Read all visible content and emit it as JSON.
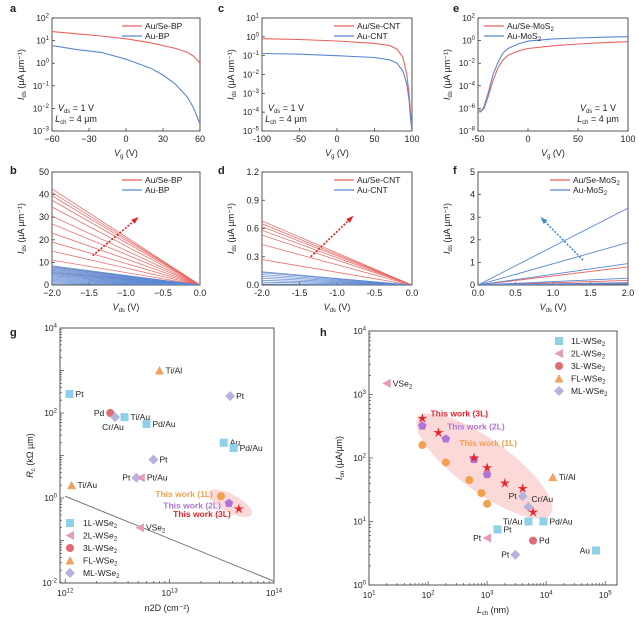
{
  "colors": {
    "red": "#e8625f",
    "blue": "#5b87d1",
    "arrow_red": "#e0201c",
    "arrow_blue": "#3d8ed6",
    "sq": "#8dd0e8",
    "tri2L": "#e69bbd",
    "circ3L": "#e06b72",
    "triFL": "#f0a261",
    "diamML": "#b3b3dc",
    "tw1": "#f2a04e",
    "tw2": "#b173d8",
    "tw3": "#e8232a",
    "ellipse": "#fbd9d9",
    "axis": "#555555"
  },
  "chart_data": [
    {
      "id": "a",
      "panel_label": "a",
      "type": "line",
      "yscale": "log",
      "xlabel": "Vg (V)",
      "ylabel": "Ids (µA µm⁻¹)",
      "xlim": [
        -60,
        60
      ],
      "ylim_exp": [
        -3,
        2
      ],
      "xticks": [
        -60,
        -30,
        0,
        30,
        60
      ],
      "xtick_labels": [
        "−60",
        "−30",
        "0",
        "30",
        "60"
      ],
      "ytick_exps": [
        -3,
        -2,
        -1,
        0,
        1,
        2
      ],
      "legend": [
        "Au/Se-BP",
        "Au-BP"
      ],
      "legend_pos": "top-right",
      "annotation": [
        "Vds = 1 V",
        "Lch = 4 µm"
      ],
      "series": [
        {
          "name": "Au/Se-BP",
          "color": "red",
          "x": [
            -60,
            -40,
            -20,
            0,
            20,
            40,
            50,
            55,
            60
          ],
          "y": [
            25,
            20,
            16,
            12,
            8,
            4.5,
            3,
            2,
            1
          ]
        },
        {
          "name": "Au-BP",
          "color": "blue",
          "x": [
            -60,
            -40,
            -20,
            0,
            20,
            30,
            40,
            50,
            55,
            60
          ],
          "y": [
            6,
            4,
            3,
            1.5,
            0.6,
            0.3,
            0.12,
            0.03,
            0.01,
            0.002
          ]
        }
      ]
    },
    {
      "id": "c",
      "panel_label": "c",
      "type": "line",
      "yscale": "log",
      "xlabel": "Vg (V)",
      "ylabel": "Ids (µA um⁻¹)",
      "xlim": [
        -100,
        100
      ],
      "ylim_exp": [
        -5,
        1
      ],
      "xticks": [
        -100,
        -50,
        0,
        50,
        100
      ],
      "xtick_labels": [
        "-100",
        "-50",
        "0",
        "50",
        "100"
      ],
      "ytick_exps": [
        -5,
        -4,
        -3,
        -2,
        -1,
        0,
        1
      ],
      "legend": [
        "Au/Se-CNT",
        "Au-CNT"
      ],
      "legend_pos": "top-right",
      "annotation": [
        "Vds = 1 V",
        "Lch = 4 µm"
      ],
      "series": [
        {
          "name": "Au/Se-CNT",
          "color": "red",
          "x": [
            -100,
            -50,
            0,
            50,
            70,
            80,
            88,
            93,
            96,
            98,
            100
          ],
          "y": [
            0.8,
            0.72,
            0.6,
            0.45,
            0.35,
            0.22,
            0.08,
            0.01,
            0.001,
            0.0001,
            1e-05
          ]
        },
        {
          "name": "Au-CNT",
          "color": "blue",
          "x": [
            -100,
            -50,
            0,
            50,
            70,
            80,
            88,
            93,
            96,
            98,
            100
          ],
          "y": [
            0.13,
            0.12,
            0.1,
            0.08,
            0.06,
            0.04,
            0.015,
            0.003,
            0.0005,
            5e-05,
            1e-05
          ]
        }
      ]
    },
    {
      "id": "e",
      "panel_label": "e",
      "type": "line",
      "yscale": "log",
      "xlabel": "Vg (V)",
      "ylabel": "Ids (µA µm⁻¹)",
      "xlim": [
        -50,
        100
      ],
      "ylim_exp": [
        -8,
        2
      ],
      "xticks": [
        -50,
        0,
        50,
        100
      ],
      "xtick_labels": [
        "-50",
        "0",
        "50",
        "100"
      ],
      "ytick_exps": [
        -8,
        -6,
        -4,
        -2,
        0,
        2
      ],
      "legend": [
        "Au/Se-MoS₂",
        "Au-MoS₂"
      ],
      "legend_pos": "top-left",
      "annotation": [
        "Vds = 1 V",
        "Lch = 4 µm"
      ],
      "series": [
        {
          "name": "Au/Se-MoS₂",
          "color": "red",
          "x": [
            -50,
            -47,
            -44,
            -40,
            -35,
            -30,
            -25,
            -20,
            -10,
            0,
            25,
            50,
            75,
            100
          ],
          "y": [
            8e-07,
            6e-07,
            1e-06,
            1e-05,
            0.0003,
            0.004,
            0.02,
            0.05,
            0.12,
            0.2,
            0.35,
            0.5,
            0.65,
            0.8
          ]
        },
        {
          "name": "Au-MoS₂",
          "color": "blue",
          "x": [
            -50,
            -47,
            -44,
            -40,
            -35,
            -30,
            -25,
            -20,
            -10,
            0,
            25,
            50,
            75,
            100
          ],
          "y": [
            5e-07,
            5e-07,
            1.5e-06,
            2e-05,
            0.001,
            0.012,
            0.08,
            0.2,
            0.5,
            0.9,
            1.4,
            1.7,
            2,
            2.2
          ]
        }
      ]
    },
    {
      "id": "b",
      "panel_label": "b",
      "type": "line",
      "yscale": "linear",
      "xlabel": "Vds (V)",
      "ylabel": "Ids (µA µm⁻¹)",
      "xlim": [
        -2.0,
        0.0
      ],
      "ylim": [
        0,
        50
      ],
      "xticks": [
        -2.0,
        -1.5,
        -1.0,
        -0.5,
        0.0
      ],
      "xtick_labels": [
        "−2.0",
        "−1.5",
        "−1.0",
        "−0.5",
        "0.0"
      ],
      "yticks": [
        0,
        10,
        20,
        30,
        40,
        50
      ],
      "ytick_labels": [
        "0",
        "10",
        "20",
        "30",
        "40",
        "50"
      ],
      "legend": [
        "Au/Se-BP",
        "Au-BP"
      ],
      "legend_pos": "top-right",
      "family_note": "straight lines from (0,0) to (x=-2, value)",
      "series": [
        {
          "name": "Au/Se-BP",
          "color": "red",
          "endpoints_at_xmin": [
            5.5,
            8,
            11,
            15,
            19,
            23,
            27,
            30.5,
            34.5,
            37.5,
            39.5,
            41,
            42.5
          ]
        },
        {
          "name": "Au-BP",
          "color": "blue",
          "endpoints_at_xmin": [
            0.5,
            1,
            1.5,
            2,
            2.5,
            3,
            3.5,
            4,
            4.5,
            5,
            5.5,
            6,
            6.5,
            7,
            7.5,
            8,
            8.5
          ]
        }
      ],
      "arrow": {
        "color": "arrow_red",
        "from": [
          -1.45,
          13
        ],
        "to": [
          -0.85,
          29.5
        ]
      }
    },
    {
      "id": "d",
      "panel_label": "d",
      "type": "line",
      "yscale": "linear",
      "xlabel": "Vds (V)",
      "ylabel": "Ids (µA µm⁻¹)",
      "xlim": [
        -2.0,
        0.0
      ],
      "ylim": [
        0,
        1.2
      ],
      "xticks": [
        -2.0,
        -1.5,
        -1.0,
        -0.5,
        0.0
      ],
      "xtick_labels": [
        "-2.0",
        "-1.5",
        "-1.0",
        "-0.5",
        "0.0"
      ],
      "yticks": [
        0,
        0.3,
        0.6,
        0.9,
        1.2
      ],
      "ytick_labels": [
        "0.0",
        "0.3",
        "0.6",
        "0.9",
        "1.2"
      ],
      "legend": [
        "Au/Se-CNT",
        "Au-CNT"
      ],
      "legend_pos": "top-right",
      "series": [
        {
          "name": "Au/Se-CNT",
          "color": "red",
          "endpoints_at_xmin": [
            0.27,
            0.43,
            0.53,
            0.58,
            0.62,
            0.65,
            0.68
          ]
        },
        {
          "name": "Au-CNT",
          "color": "blue",
          "endpoints_at_xmin": [
            0.01,
            0.03,
            0.05,
            0.07,
            0.09,
            0.11,
            0.13,
            0.14
          ]
        }
      ],
      "arrow": {
        "color": "arrow_red",
        "from": [
          -1.35,
          0.3
        ],
        "to": [
          -0.8,
          0.72
        ]
      }
    },
    {
      "id": "f",
      "panel_label": "f",
      "type": "line",
      "yscale": "linear",
      "xlabel": "Vds (V)",
      "ylabel": "Ids (µA µm⁻¹)",
      "xlim": [
        0.0,
        2.0
      ],
      "ylim": [
        0,
        5
      ],
      "xticks": [
        0.0,
        0.5,
        1.0,
        1.5,
        2.0
      ],
      "xtick_labels": [
        "0.0",
        "0.5",
        "1.0",
        "1.5",
        "2.0"
      ],
      "yticks": [
        0,
        1,
        2,
        3,
        4,
        5
      ],
      "ytick_labels": [
        "0",
        "1",
        "2",
        "3",
        "4",
        "5"
      ],
      "legend": [
        "Au/Se-MoS₂",
        "Au-MoS₂"
      ],
      "legend_pos": "top-right",
      "series": [
        {
          "name": "Au/Se-MoS₂",
          "color": "red",
          "endpoints_at_xmax": [
            0.05,
            0.1,
            0.2,
            0.8
          ]
        },
        {
          "name": "Au-MoS₂",
          "color": "blue",
          "endpoints_at_xmax": [
            0.05,
            0.1,
            0.3,
            0.95,
            1.88,
            3.4
          ]
        }
      ],
      "arrow": {
        "color": "arrow_blue",
        "from": [
          1.4,
          1.1
        ],
        "to": [
          0.85,
          2.95
        ]
      }
    },
    {
      "id": "g",
      "panel_label": "g",
      "type": "scatter",
      "xscale": "log",
      "yscale": "log",
      "xlabel": "n2D (cm⁻²)",
      "ylabel": "Rc (kΩ µm)",
      "xlim_exp": [
        11.95,
        14
      ],
      "ylim_exp": [
        -2,
        4
      ],
      "xtick_exps": [
        12,
        13,
        14
      ],
      "ytick_exps": [
        -2,
        0,
        2,
        4
      ],
      "legend_pos": "bottom-left",
      "legend": [
        {
          "label": "1L-WSe₂",
          "marker": "square",
          "color": "sq"
        },
        {
          "label": "2L-WSe₂",
          "marker": "triangle-left",
          "color": "tri2L"
        },
        {
          "label": "3L-WSe₂",
          "marker": "circle",
          "color": "circ3L"
        },
        {
          "label": "FL-WSe₂",
          "marker": "triangle-up",
          "color": "triFL"
        },
        {
          "label": "ML-WSe₂",
          "marker": "diamond",
          "color": "diamML"
        }
      ],
      "points": [
        {
          "label": "Pt",
          "x": 1100000000000.0,
          "y": 280,
          "marker": "square",
          "color": "sq",
          "lpos": "right"
        },
        {
          "label": "Pd",
          "x": 2700000000000.0,
          "y": 100,
          "marker": "circle",
          "color": "circ3L",
          "lpos": "left"
        },
        {
          "label": "Cr/Au",
          "x": 3000000000000.0,
          "y": 80,
          "marker": "diamond",
          "color": "diamML",
          "lpos": "below"
        },
        {
          "label": "Ti/Au",
          "x": 3700000000000.0,
          "y": 80,
          "marker": "square",
          "color": "sq",
          "lpos": "right"
        },
        {
          "label": "Pd/Au",
          "x": 6000000000000.0,
          "y": 55,
          "marker": "square",
          "color": "sq",
          "lpos": "right"
        },
        {
          "label": "Ti/Al",
          "x": 8000000000000.0,
          "y": 1000,
          "marker": "triangle-up",
          "color": "triFL",
          "lpos": "right"
        },
        {
          "label": "Pt",
          "x": 38000000000000.0,
          "y": 250,
          "marker": "diamond",
          "color": "diamML",
          "lpos": "right"
        },
        {
          "label": "Au",
          "x": 33000000000000.0,
          "y": 20,
          "marker": "square",
          "color": "sq",
          "lpos": "right"
        },
        {
          "label": "Pd/Au",
          "x": 41000000000000.0,
          "y": 15,
          "marker": "square",
          "color": "sq",
          "lpos": "right"
        },
        {
          "label": "Pt",
          "x": 7000000000000.0,
          "y": 8,
          "marker": "diamond",
          "color": "diamML",
          "lpos": "right"
        },
        {
          "label": "Pt",
          "x": 4800000000000.0,
          "y": 3,
          "marker": "diamond",
          "color": "diamML",
          "lpos": "left"
        },
        {
          "label": "Pt/Au",
          "x": 5300000000000.0,
          "y": 3,
          "marker": "triangle-left",
          "color": "tri2L",
          "lpos": "right"
        },
        {
          "label": "Ti/Au",
          "x": 1150000000000.0,
          "y": 2,
          "marker": "triangle-up",
          "color": "triFL",
          "lpos": "right"
        },
        {
          "label": "VSe₂",
          "x": 5200000000000.0,
          "y": 0.2,
          "marker": "triangle-left",
          "color": "tri2L",
          "lpos": "right"
        }
      ],
      "this_work": [
        {
          "label": "This work (1L)",
          "x": 31000000000000.0,
          "y": 1.1,
          "marker": "circle",
          "color": "tw1"
        },
        {
          "label": "This work (2L)",
          "x": 37000000000000.0,
          "y": 0.75,
          "marker": "pentagon",
          "color": "tw2"
        },
        {
          "label": "This work (3L)",
          "x": 46000000000000.0,
          "y": 0.55,
          "marker": "star",
          "color": "tw3"
        }
      ],
      "limit_line": {
        "from": [
          1000000000000.0,
          1.1
        ],
        "to": [
          100000000000000.0,
          0.011
        ]
      }
    },
    {
      "id": "h",
      "panel_label": "h",
      "type": "scatter",
      "xscale": "log",
      "yscale": "log",
      "xlabel": "Lch (nm)",
      "ylabel": "Ion (µA/µm)",
      "xlim_exp": [
        1,
        5.2
      ],
      "ylim_exp": [
        0,
        4
      ],
      "xtick_exps": [
        1,
        2,
        3,
        4,
        5
      ],
      "ytick_exps": [
        0,
        1,
        2,
        3,
        4
      ],
      "legend_pos": "top-right",
      "legend": [
        {
          "label": "1L-WSe₂",
          "marker": "square",
          "color": "sq"
        },
        {
          "label": "2L-WSe₂",
          "marker": "triangle-left",
          "color": "tri2L"
        },
        {
          "label": "3L-WSe₂",
          "marker": "circle",
          "color": "circ3L"
        },
        {
          "label": "FL-WSe₂",
          "marker": "triangle-up",
          "color": "triFL"
        },
        {
          "label": "ML-WSe₂",
          "marker": "diamond",
          "color": "diamML"
        }
      ],
      "points": [
        {
          "label": "VSe₂",
          "x": 20,
          "y": 1500,
          "marker": "triangle-left",
          "color": "tri2L",
          "lpos": "right"
        },
        {
          "label": "Ti/Al",
          "x": 13000,
          "y": 50,
          "marker": "triangle-up",
          "color": "triFL",
          "lpos": "right"
        },
        {
          "label": "Pt",
          "x": 4000,
          "y": 25,
          "marker": "diamond",
          "color": "diamML",
          "lpos": "left"
        },
        {
          "label": "Cr/Au",
          "x": 5000,
          "y": 17,
          "marker": "diamond",
          "color": "diamML",
          "lpos": "above-right"
        },
        {
          "label": "Ti/Au",
          "x": 5000,
          "y": 10,
          "marker": "square",
          "color": "sq",
          "lpos": "left"
        },
        {
          "label": "Pd/Au",
          "x": 9000,
          "y": 10,
          "marker": "square",
          "color": "sq",
          "lpos": "right"
        },
        {
          "label": "Pt",
          "x": 1500,
          "y": 7.5,
          "marker": "square",
          "color": "sq",
          "lpos": "right"
        },
        {
          "label": "Pt",
          "x": 1000,
          "y": 5.5,
          "marker": "triangle-left",
          "color": "tri2L",
          "lpos": "left"
        },
        {
          "label": "Pd",
          "x": 6000,
          "y": 5,
          "marker": "circle",
          "color": "circ3L",
          "lpos": "right"
        },
        {
          "label": "Pt",
          "x": 3000,
          "y": 3,
          "marker": "diamond",
          "color": "diamML",
          "lpos": "left"
        },
        {
          "label": "Au",
          "x": 70000,
          "y": 3.5,
          "marker": "square",
          "color": "sq",
          "lpos": "left"
        }
      ],
      "this_work_labels": [
        {
          "label": "This work (3L)",
          "color": "tw3"
        },
        {
          "label": "This work (2L)",
          "color": "tw2"
        },
        {
          "label": "This work (1L)",
          "color": "tw1"
        }
      ],
      "this_work_series": [
        {
          "name": "1L",
          "marker": "circle",
          "color": "tw1",
          "x": [
            80,
            200,
            500,
            800,
            1000
          ],
          "y": [
            160,
            85,
            45,
            28,
            19
          ]
        },
        {
          "name": "2L",
          "marker": "pentagon",
          "color": "tw2",
          "x": [
            80,
            200,
            600,
            1000
          ],
          "y": [
            320,
            200,
            95,
            55
          ]
        },
        {
          "name": "3L",
          "marker": "star",
          "color": "tw3",
          "x": [
            80,
            150,
            600,
            1000,
            2000,
            4000,
            6000
          ],
          "y": [
            420,
            250,
            100,
            70,
            40,
            33,
            14
          ]
        }
      ]
    }
  ]
}
